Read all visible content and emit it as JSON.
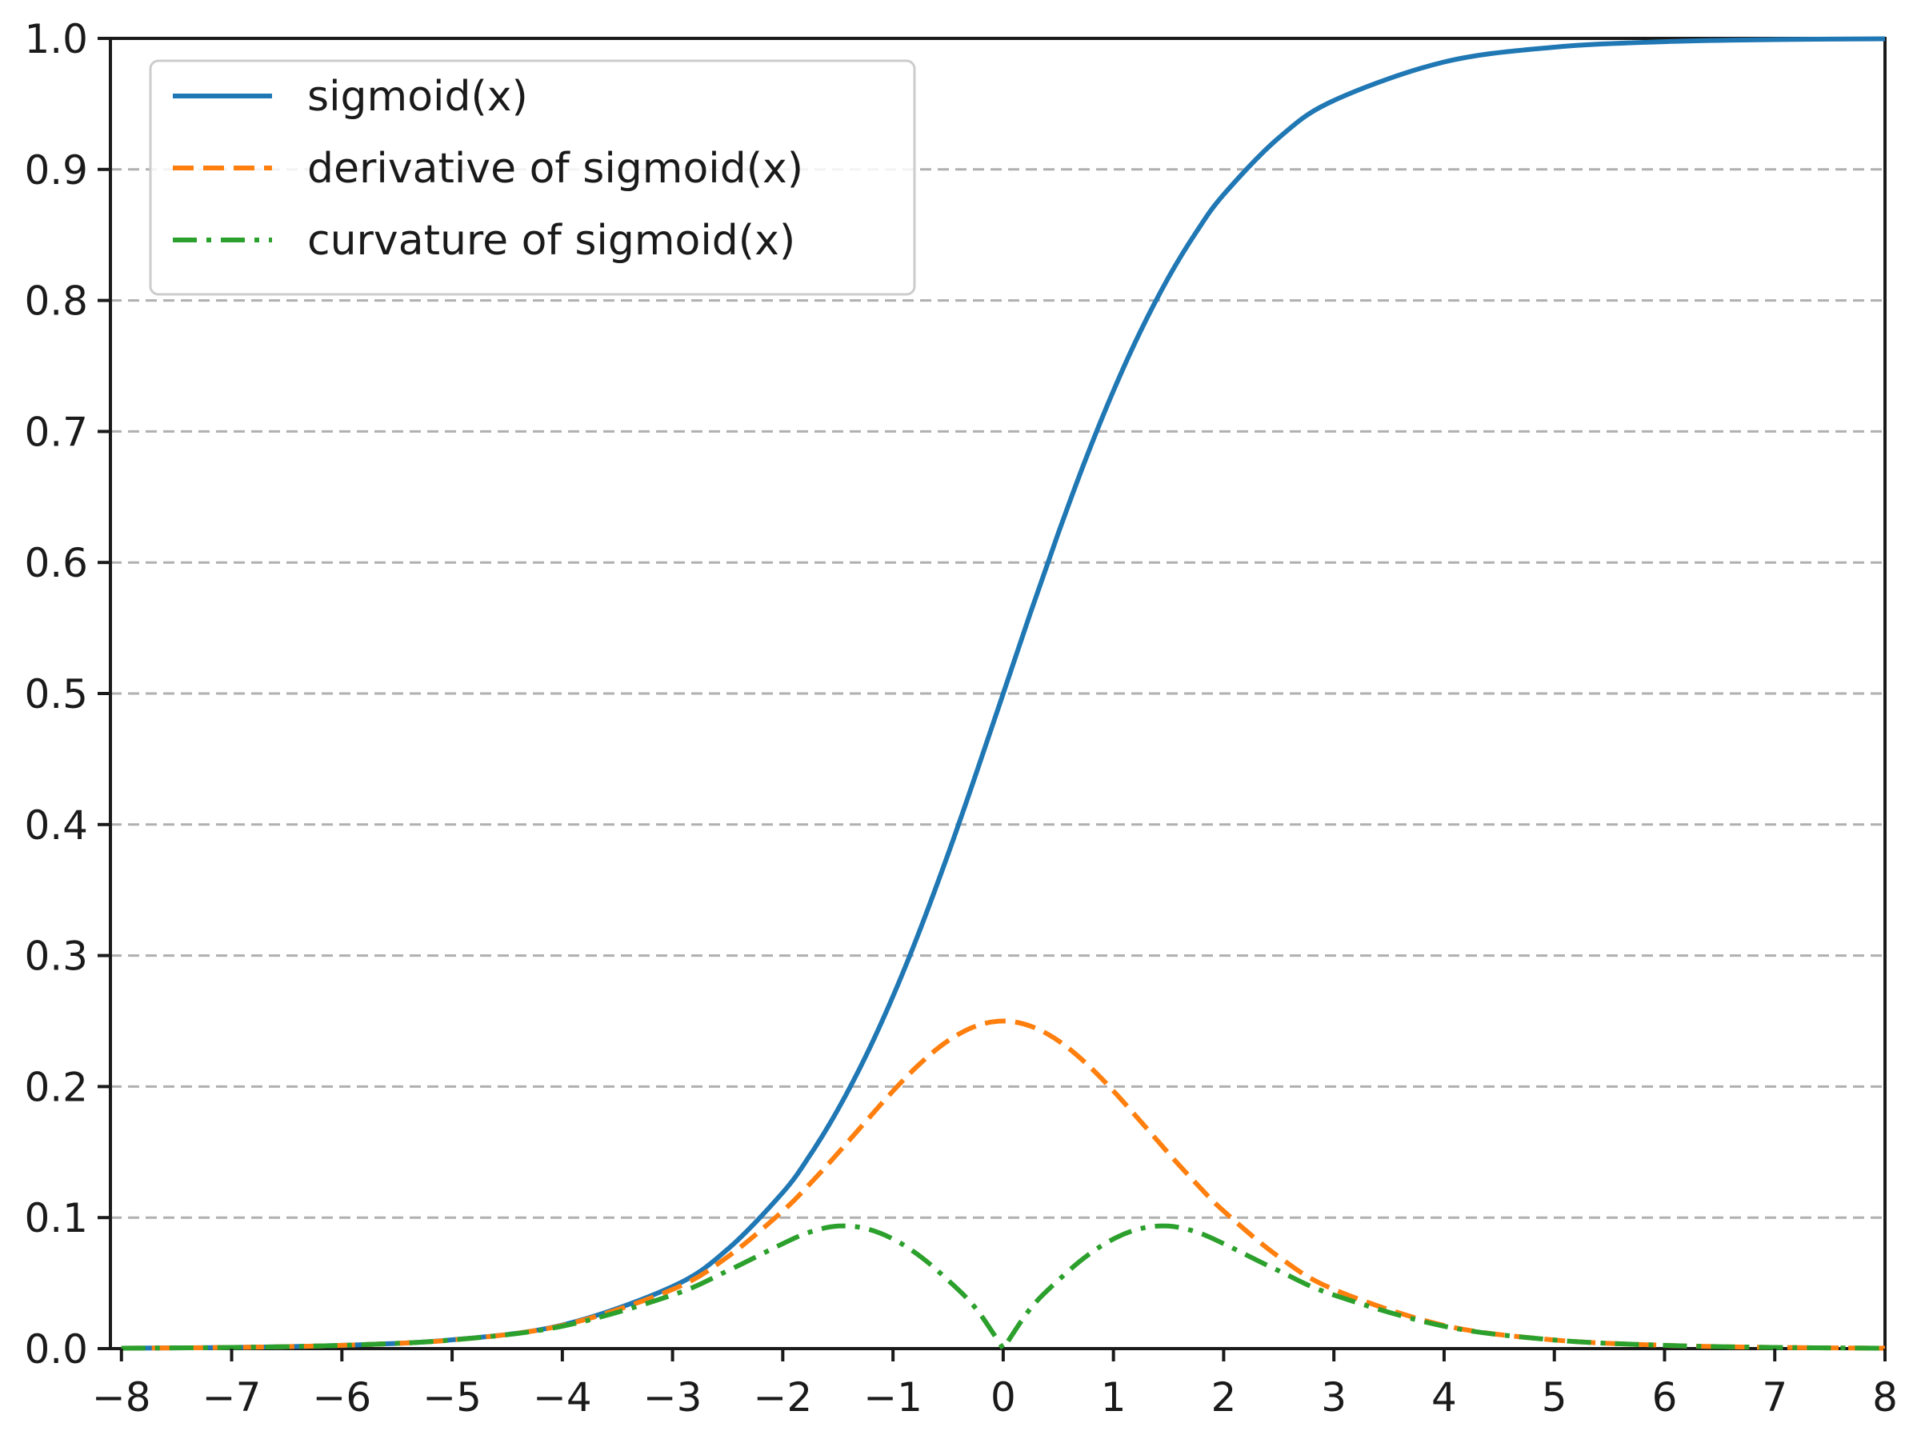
{
  "chart_data": {
    "type": "line",
    "title": "",
    "xlabel": "",
    "ylabel": "",
    "xlim": [
      -8.1,
      8
    ],
    "ylim": [
      0,
      1
    ],
    "x_ticks": [
      -8,
      -7,
      -6,
      -5,
      -4,
      -3,
      -2,
      -1,
      0,
      1,
      2,
      3,
      4,
      5,
      6,
      7,
      8
    ],
    "x_tick_labels": [
      "−8",
      "−7",
      "−6",
      "−5",
      "−4",
      "−3",
      "−2",
      "−1",
      "0",
      "1",
      "2",
      "3",
      "4",
      "5",
      "6",
      "7",
      "8"
    ],
    "y_ticks": [
      0.0,
      0.1,
      0.2,
      0.3,
      0.4,
      0.5,
      0.6,
      0.7,
      0.8,
      0.9,
      1.0
    ],
    "y_tick_labels": [
      "0.0",
      "0.1",
      "0.2",
      "0.3",
      "0.4",
      "0.5",
      "0.6",
      "0.7",
      "0.8",
      "0.9",
      "1.0"
    ],
    "grid": {
      "axis": "y",
      "style": "dashed",
      "color": "#b0b0b0"
    },
    "legend": {
      "placement": "top-left"
    },
    "x": [
      -8,
      -7,
      -6,
      -5,
      -4,
      -3,
      -2.5,
      -2,
      -1.75,
      -1.5,
      -1.25,
      -1,
      -0.75,
      -0.5,
      -0.25,
      0,
      0.25,
      0.5,
      0.75,
      1,
      1.25,
      1.5,
      1.75,
      2,
      2.5,
      3,
      4,
      5,
      6,
      7,
      8
    ],
    "series": [
      {
        "name": "sigmoid(x)",
        "color": "#1f77b4",
        "style": "solid",
        "values": [
          0.0003,
          0.0009,
          0.0025,
          0.0067,
          0.018,
          0.0474,
          0.0759,
          0.1192,
          0.148,
          0.1824,
          0.2227,
          0.2689,
          0.3208,
          0.3775,
          0.4378,
          0.5,
          0.5622,
          0.6225,
          0.6792,
          0.7311,
          0.7773,
          0.8176,
          0.852,
          0.8808,
          0.9241,
          0.9526,
          0.982,
          0.9933,
          0.9975,
          0.9991,
          0.9997
        ]
      },
      {
        "name": "derivative of sigmoid(x)",
        "color": "#ff7f0e",
        "style": "dashed",
        "values": [
          0.0003,
          0.0009,
          0.0025,
          0.0066,
          0.0177,
          0.0452,
          0.0701,
          0.105,
          0.1261,
          0.1491,
          0.1731,
          0.1966,
          0.2179,
          0.235,
          0.2461,
          0.25,
          0.2461,
          0.235,
          0.2179,
          0.1966,
          0.1731,
          0.1491,
          0.1261,
          0.105,
          0.0701,
          0.0452,
          0.0177,
          0.0066,
          0.0025,
          0.0009,
          0.0003
        ]
      },
      {
        "name": "curvature of sigmoid(x)",
        "color": "#2ca02c",
        "style": "dashdot",
        "values": [
          0.0003,
          0.0009,
          0.0025,
          0.0066,
          0.0171,
          0.0409,
          0.0594,
          0.0801,
          0.0891,
          0.0935,
          0.0917,
          0.0837,
          0.0702,
          0.0522,
          0.0309,
          0.0,
          0.0309,
          0.0522,
          0.0702,
          0.0837,
          0.0917,
          0.0935,
          0.0891,
          0.0801,
          0.0594,
          0.0409,
          0.0171,
          0.0066,
          0.0025,
          0.0009,
          0.0003
        ]
      }
    ]
  }
}
